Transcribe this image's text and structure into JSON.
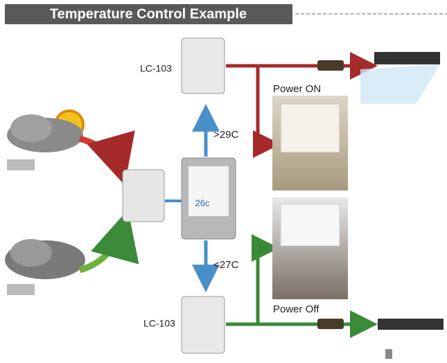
{
  "header": {
    "title": "Temperature Control Example"
  },
  "nodes": [
    {
      "label": "LC-103"
    },
    {
      "label": "LC-103"
    },
    {
      "label": ">29C"
    },
    {
      "label": "<27C"
    },
    {
      "label": "Power ON"
    },
    {
      "label": "Power Off"
    },
    {
      "label": "26c"
    }
  ]
}
